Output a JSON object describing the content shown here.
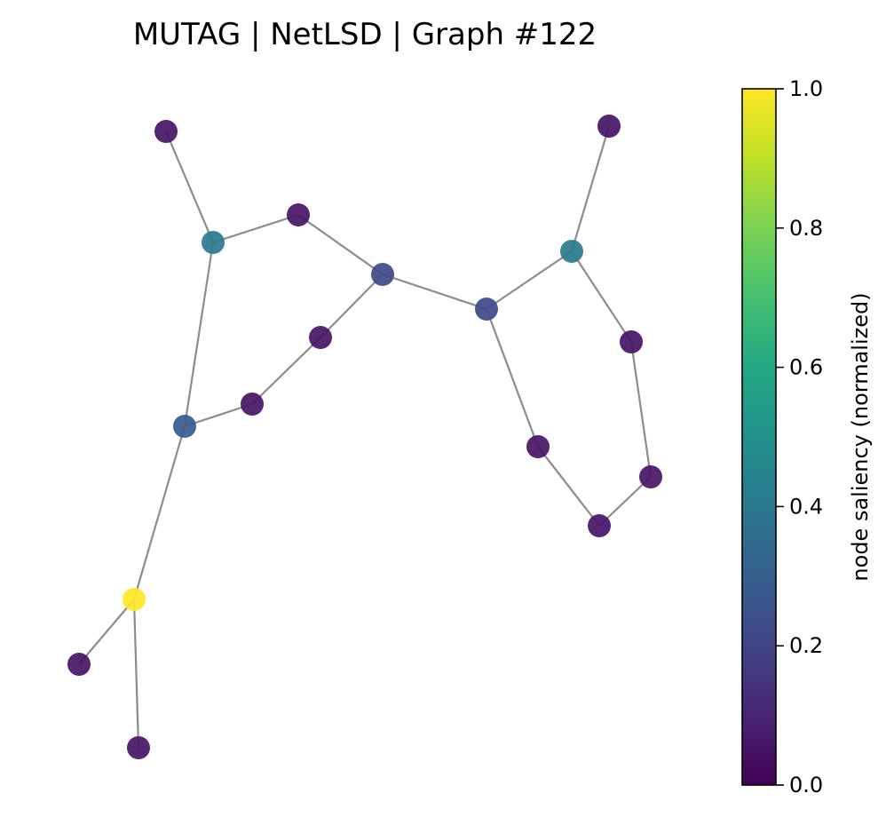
{
  "title": "MUTAG | NetLSD | Graph #122",
  "colorbar": {
    "label": "node saliency (normalized)",
    "colormap": "viridis",
    "range": [
      0.0,
      1.0
    ],
    "ticks": [
      {
        "value": 0.0,
        "label": "0.0"
      },
      {
        "value": 0.2,
        "label": "0.2"
      },
      {
        "value": 0.4,
        "label": "0.4"
      },
      {
        "value": 0.6,
        "label": "0.6"
      },
      {
        "value": 0.8,
        "label": "0.8"
      },
      {
        "value": 1.0,
        "label": "1.0"
      }
    ]
  },
  "graph": {
    "nodes": [
      {
        "id": 0,
        "saliency": 0.05
      },
      {
        "id": 1,
        "saliency": 0.4
      },
      {
        "id": 2,
        "saliency": 0.05
      },
      {
        "id": 3,
        "saliency": 0.22
      },
      {
        "id": 4,
        "saliency": 0.05
      },
      {
        "id": 5,
        "saliency": 0.05
      },
      {
        "id": 6,
        "saliency": 0.28
      },
      {
        "id": 7,
        "saliency": 1.0
      },
      {
        "id": 8,
        "saliency": 0.05
      },
      {
        "id": 9,
        "saliency": 0.05
      },
      {
        "id": 10,
        "saliency": 0.22
      },
      {
        "id": 11,
        "saliency": 0.4
      },
      {
        "id": 12,
        "saliency": 0.05
      },
      {
        "id": 13,
        "saliency": 0.05
      },
      {
        "id": 14,
        "saliency": 0.05
      },
      {
        "id": 15,
        "saliency": 0.05
      },
      {
        "id": 16,
        "saliency": 0.05
      }
    ],
    "edges": [
      [
        0,
        1
      ],
      [
        1,
        2
      ],
      [
        2,
        3
      ],
      [
        3,
        4
      ],
      [
        4,
        5
      ],
      [
        5,
        6
      ],
      [
        6,
        1
      ],
      [
        6,
        7
      ],
      [
        7,
        8
      ],
      [
        7,
        9
      ],
      [
        3,
        10
      ],
      [
        10,
        11
      ],
      [
        11,
        12
      ],
      [
        11,
        13
      ],
      [
        13,
        14
      ],
      [
        14,
        15
      ],
      [
        15,
        16
      ],
      [
        16,
        10
      ]
    ]
  }
}
